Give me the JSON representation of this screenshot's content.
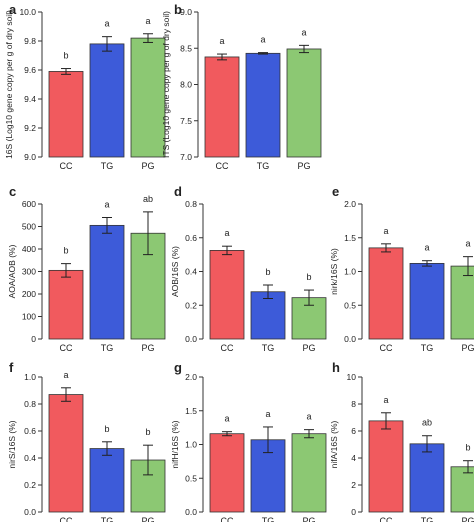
{
  "colors": {
    "CC": "#f15a5e",
    "TG": "#3d5bd9",
    "PG": "#8cc873",
    "axis": "#333333",
    "error_bar": "#222222"
  },
  "chart_data": [
    {
      "panel": "a",
      "type": "bar",
      "categories": [
        "CC",
        "TG",
        "PG"
      ],
      "ylabel": "16S (Log10 gene copy per g of dry soil)",
      "ylim": [
        9.0,
        10.0
      ],
      "yticks": [
        "9.0",
        "9.2",
        "9.4",
        "9.6",
        "9.8",
        "10.0"
      ],
      "values": [
        9.59,
        9.78,
        9.82
      ],
      "errors": [
        0.02,
        0.05,
        0.03
      ],
      "letters": [
        "b",
        "a",
        "a"
      ]
    },
    {
      "panel": "b",
      "type": "bar",
      "categories": [
        "CC",
        "TG",
        "PG"
      ],
      "ylabel": "ITS (Log10 gene copy per g of dry soil)",
      "ylim": [
        7.0,
        9.0
      ],
      "yticks": [
        "7.0",
        "7.5",
        "8.0",
        "8.5",
        "9.0"
      ],
      "values": [
        8.38,
        8.43,
        8.49
      ],
      "errors": [
        0.04,
        0.01,
        0.05
      ],
      "letters": [
        "a",
        "a",
        "a"
      ]
    },
    {
      "panel": "c",
      "type": "bar",
      "categories": [
        "CC",
        "TG",
        "PG"
      ],
      "ylabel": "AOA/AOB (%)",
      "ylim": [
        0,
        600
      ],
      "yticks": [
        "0",
        "100",
        "200",
        "300",
        "400",
        "500",
        "600"
      ],
      "values": [
        305,
        505,
        470
      ],
      "errors": [
        30,
        35,
        95
      ],
      "letters": [
        "b",
        "a",
        "ab"
      ]
    },
    {
      "panel": "d",
      "type": "bar",
      "categories": [
        "CC",
        "TG",
        "PG"
      ],
      "ylabel": "AOB/16S (%)",
      "ylim": [
        0,
        0.8
      ],
      "yticks": [
        "0.0",
        "0.2",
        "0.4",
        "0.6",
        "0.8"
      ],
      "values": [
        0.525,
        0.28,
        0.245
      ],
      "errors": [
        0.025,
        0.04,
        0.045
      ],
      "letters": [
        "a",
        "b",
        "b"
      ]
    },
    {
      "panel": "e",
      "type": "bar",
      "categories": [
        "CC",
        "TG",
        "PG"
      ],
      "ylabel": "nirk/16S (%)",
      "ylim": [
        0,
        2.0
      ],
      "yticks": [
        "0.0",
        "0.5",
        "1.0",
        "1.5",
        "2.0"
      ],
      "values": [
        1.35,
        1.12,
        1.08
      ],
      "errors": [
        0.06,
        0.04,
        0.14
      ],
      "letters": [
        "a",
        "a",
        "a"
      ]
    },
    {
      "panel": "f",
      "type": "bar",
      "categories": [
        "CC",
        "TG",
        "PG"
      ],
      "ylabel": "nirS/16S (%)",
      "ylim": [
        0,
        1.0
      ],
      "yticks": [
        "0.0",
        "0.2",
        "0.4",
        "0.6",
        "0.8",
        "1.0"
      ],
      "values": [
        0.87,
        0.47,
        0.385
      ],
      "errors": [
        0.05,
        0.05,
        0.11
      ],
      "letters": [
        "a",
        "b",
        "b"
      ]
    },
    {
      "panel": "g",
      "type": "bar",
      "categories": [
        "CC",
        "TG",
        "PG"
      ],
      "ylabel": "nifH/16S (%)",
      "ylim": [
        0,
        2.0
      ],
      "yticks": [
        "0.0",
        "0.5",
        "1.0",
        "1.5",
        "2.0"
      ],
      "values": [
        1.16,
        1.07,
        1.16
      ],
      "errors": [
        0.03,
        0.19,
        0.06
      ],
      "letters": [
        "a",
        "a",
        "a"
      ]
    },
    {
      "panel": "h",
      "type": "bar",
      "categories": [
        "CC",
        "TG",
        "PG"
      ],
      "ylabel": "nifA/16S (%)",
      "ylim": [
        0,
        10
      ],
      "yticks": [
        "0",
        "2",
        "4",
        "6",
        "8",
        "10"
      ],
      "values": [
        6.75,
        5.05,
        3.35
      ],
      "errors": [
        0.6,
        0.6,
        0.45
      ],
      "letters": [
        "a",
        "ab",
        "b"
      ]
    }
  ]
}
